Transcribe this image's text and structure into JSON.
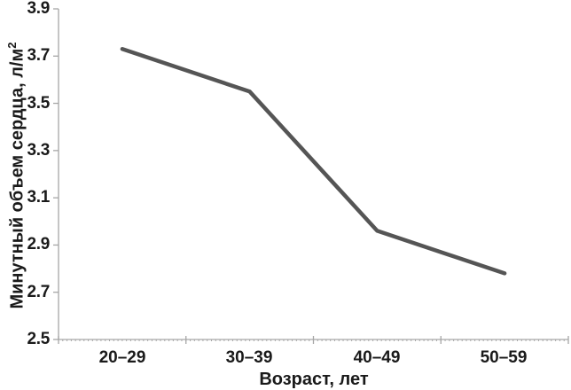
{
  "chart_data": {
    "type": "line",
    "categories": [
      "20–29",
      "30–39",
      "40–49",
      "50–59"
    ],
    "series": [
      {
        "name": "Минутный объем сердца",
        "values": [
          3.73,
          3.55,
          2.96,
          2.78
        ]
      }
    ],
    "title": "",
    "xlabel": "Возраст, лет",
    "ylabel": "Минутный объем сердца, л/м²",
    "ylabel_parts": {
      "text": "Минутный объем сердца, л/м",
      "sup": "2"
    },
    "y_ticks": [
      "3.9",
      "3.7",
      "3.5",
      "3.3",
      "3.1",
      "2.9",
      "2.7",
      "2.5"
    ],
    "ylim": [
      2.5,
      3.9
    ],
    "y_tick_step": 0.2,
    "grid": "off",
    "legend": "none",
    "line_color": "#555555",
    "axis_color": "#a6a6a6",
    "text_color": "#1a1a1a"
  }
}
